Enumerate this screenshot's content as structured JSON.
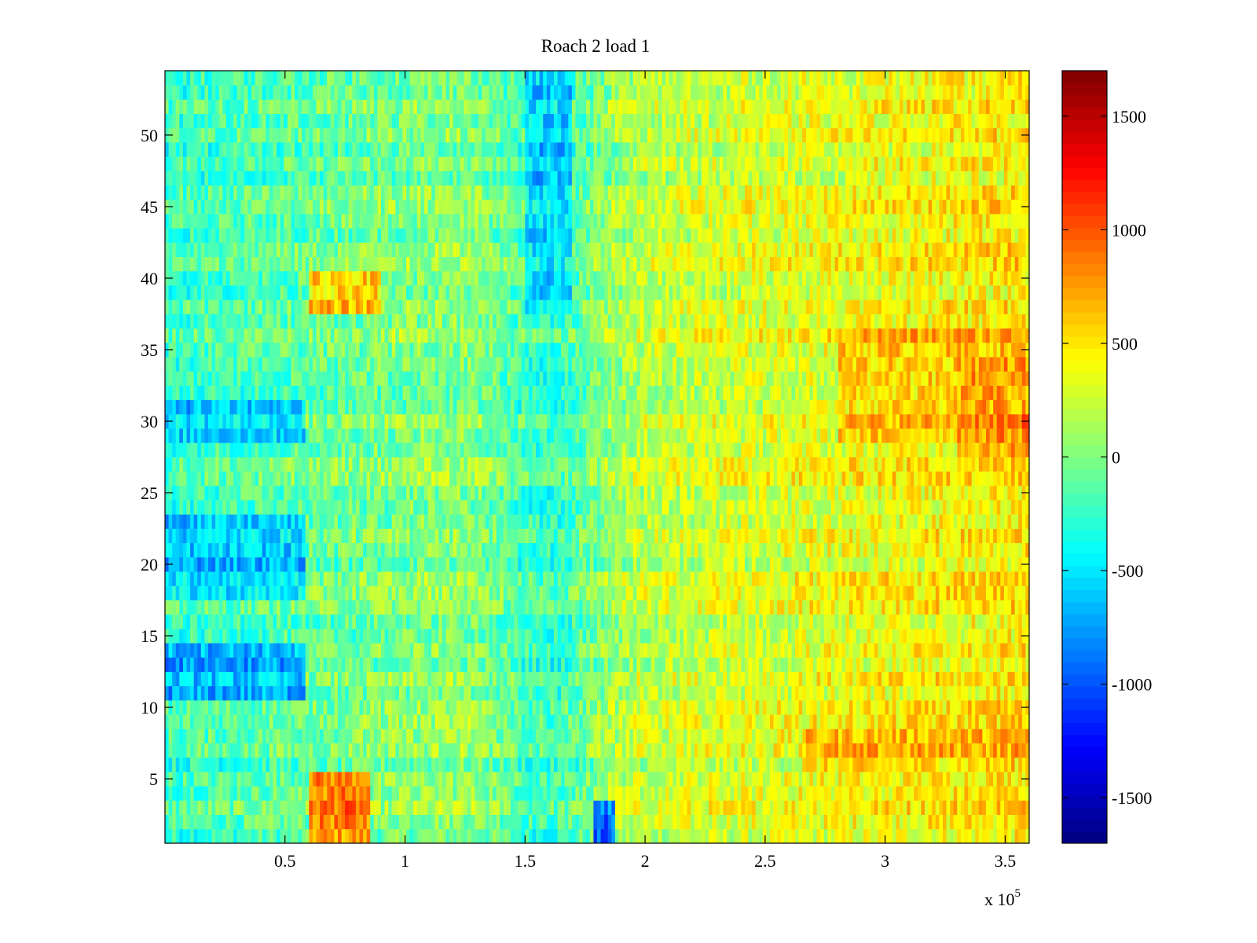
{
  "chart_data": {
    "type": "heatmap",
    "title": "Roach 2 load 1",
    "xlabel": "",
    "ylabel": "",
    "x_exponent_label": "x 10",
    "x_exponent_power": "5",
    "xlim": [
      0,
      3.6
    ],
    "ylim": [
      0.5,
      54.5
    ],
    "x_ticks": [
      {
        "value": 0.5,
        "label": "0.5"
      },
      {
        "value": 1,
        "label": "1"
      },
      {
        "value": 1.5,
        "label": "1.5"
      },
      {
        "value": 2,
        "label": "2"
      },
      {
        "value": 2.5,
        "label": "2.5"
      },
      {
        "value": 3,
        "label": "3"
      },
      {
        "value": 3.5,
        "label": "3.5"
      }
    ],
    "y_ticks": [
      {
        "value": 5,
        "label": "5"
      },
      {
        "value": 10,
        "label": "10"
      },
      {
        "value": 15,
        "label": "15"
      },
      {
        "value": 20,
        "label": "20"
      },
      {
        "value": 25,
        "label": "25"
      },
      {
        "value": 30,
        "label": "30"
      },
      {
        "value": 35,
        "label": "35"
      },
      {
        "value": 40,
        "label": "40"
      },
      {
        "value": 45,
        "label": "45"
      },
      {
        "value": 50,
        "label": "50"
      }
    ],
    "rows": 54,
    "colormap": "jet",
    "clim": [
      -1700,
      1700
    ],
    "colorbar_ticks": [
      {
        "value": 1500,
        "label": "1500"
      },
      {
        "value": 1000,
        "label": "1000"
      },
      {
        "value": 500,
        "label": "500"
      },
      {
        "value": 0,
        "label": "0"
      },
      {
        "value": -500,
        "label": "-500"
      },
      {
        "value": -1000,
        "label": "-1000"
      },
      {
        "value": -1500,
        "label": "-1500"
      }
    ],
    "features": [
      {
        "x": [
          0.6,
          0.85
        ],
        "y": [
          1,
          5
        ],
        "value": 1250
      },
      {
        "x": [
          0.6,
          0.9
        ],
        "y": [
          38,
          40
        ],
        "value": 950
      },
      {
        "x": [
          1.78,
          1.88
        ],
        "y": [
          1,
          3
        ],
        "value": -1500
      },
      {
        "x": [
          1.5,
          1.7
        ],
        "y": [
          38,
          54
        ],
        "value": -700
      },
      {
        "x": [
          0,
          0.58
        ],
        "y": [
          11,
          14
        ],
        "value": -950
      },
      {
        "x": [
          0,
          0.58
        ],
        "y": [
          18,
          23
        ],
        "value": -800
      },
      {
        "x": [
          0,
          0.58
        ],
        "y": [
          29,
          31
        ],
        "value": -750
      },
      {
        "x": [
          2.65,
          3.6
        ],
        "y": [
          6,
          8
        ],
        "value": 700
      },
      {
        "x": [
          2.8,
          3.6
        ],
        "y": [
          29,
          36
        ],
        "value": 700
      },
      {
        "x": [
          3.3,
          3.6
        ],
        "y": [
          28,
          34
        ],
        "value": 900
      }
    ]
  }
}
